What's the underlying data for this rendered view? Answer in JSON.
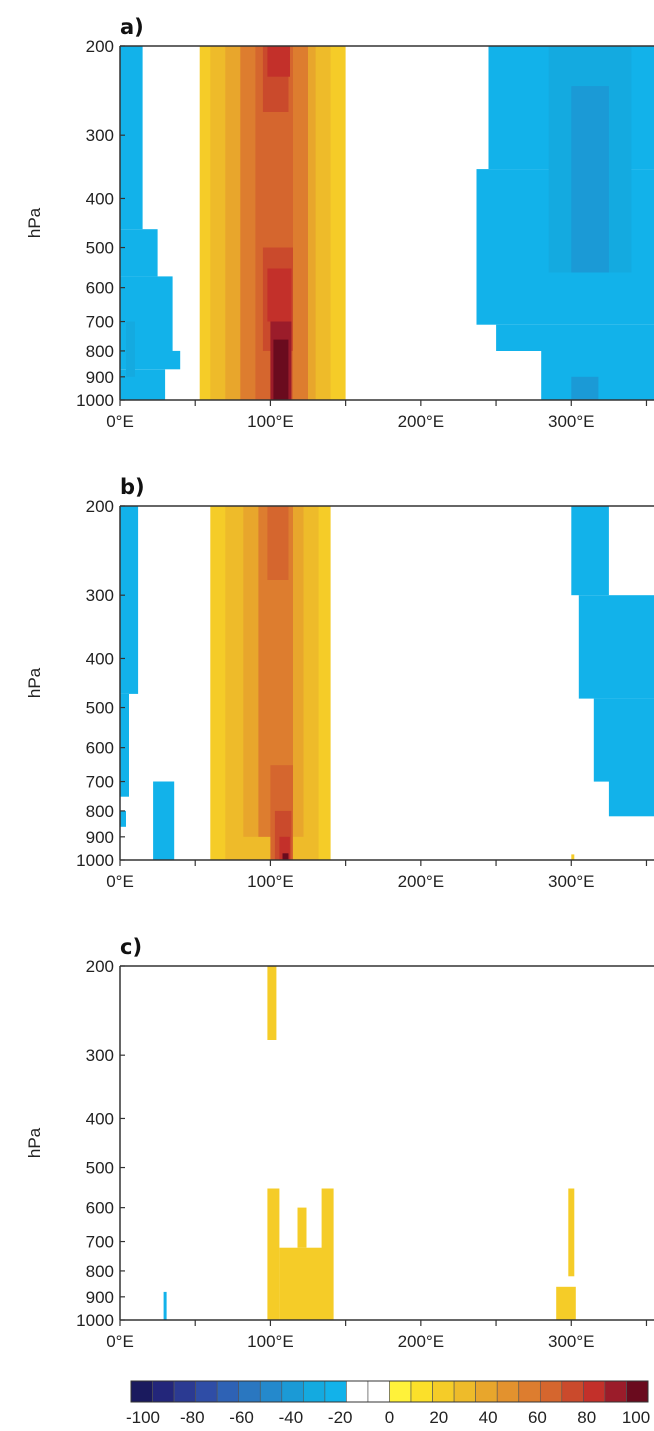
{
  "chart_data": [
    {
      "type": "heatmap",
      "panel_label": "a)",
      "ylabel": "hPa",
      "yticks": [
        "200",
        "300",
        "400",
        "500",
        "600",
        "700",
        "800",
        "900",
        "1000"
      ],
      "xticks": [
        "0°E",
        "100°E",
        "200°E",
        "300°E"
      ],
      "xlim": [
        0,
        355
      ],
      "ylim": [
        1000,
        200
      ],
      "y_scale": "log",
      "regions": [
        {
          "lon": [
            0,
            15
          ],
          "p": [
            200,
            460
          ],
          "value": -20
        },
        {
          "lon": [
            0,
            25
          ],
          "p": [
            460,
            570
          ],
          "value": -20
        },
        {
          "lon": [
            0,
            35
          ],
          "p": [
            570,
            800
          ],
          "value": -20
        },
        {
          "lon": [
            0,
            40
          ],
          "p": [
            800,
            870
          ],
          "value": -20
        },
        {
          "lon": [
            0,
            30
          ],
          "p": [
            870,
            1000
          ],
          "value": -20
        },
        {
          "lon": [
            4,
            10
          ],
          "p": [
            700,
            900
          ],
          "value": -30
        },
        {
          "lon": [
            53,
            150
          ],
          "p": [
            200,
            1000
          ],
          "value": 20
        },
        {
          "lon": [
            60,
            140
          ],
          "p": [
            200,
            1000
          ],
          "value": 30
        },
        {
          "lon": [
            70,
            130
          ],
          "p": [
            200,
            1000
          ],
          "value": 40
        },
        {
          "lon": [
            80,
            125
          ],
          "p": [
            200,
            1000
          ],
          "value": 50
        },
        {
          "lon": [
            90,
            115
          ],
          "p": [
            200,
            1000
          ],
          "value": 60
        },
        {
          "lon": [
            95,
            112
          ],
          "p": [
            200,
            270
          ],
          "value": 70
        },
        {
          "lon": [
            95,
            115
          ],
          "p": [
            500,
            800
          ],
          "value": 70
        },
        {
          "lon": [
            98,
            113
          ],
          "p": [
            200,
            230
          ],
          "value": 80
        },
        {
          "lon": [
            98,
            114
          ],
          "p": [
            550,
            700
          ],
          "value": 80
        },
        {
          "lon": [
            100,
            114
          ],
          "p": [
            700,
            1000
          ],
          "value": 90
        },
        {
          "lon": [
            102,
            112
          ],
          "p": [
            760,
            1000
          ],
          "value": 100
        },
        {
          "lon": [
            245,
            355
          ],
          "p": [
            200,
            350
          ],
          "value": -20
        },
        {
          "lon": [
            237,
            355
          ],
          "p": [
            350,
            710
          ],
          "value": -20
        },
        {
          "lon": [
            250,
            355
          ],
          "p": [
            710,
            800
          ],
          "value": -20
        },
        {
          "lon": [
            280,
            355
          ],
          "p": [
            800,
            1000
          ],
          "value": -20
        },
        {
          "lon": [
            285,
            340
          ],
          "p": [
            200,
            560
          ],
          "value": -30
        },
        {
          "lon": [
            300,
            325
          ],
          "p": [
            240,
            560
          ],
          "value": -40
        },
        {
          "lon": [
            300,
            318
          ],
          "p": [
            900,
            1000
          ],
          "value": -40
        }
      ]
    },
    {
      "type": "heatmap",
      "panel_label": "b)",
      "ylabel": "hPa",
      "yticks": [
        "200",
        "300",
        "400",
        "500",
        "600",
        "700",
        "800",
        "900",
        "1000"
      ],
      "xticks": [
        "0°E",
        "100°E",
        "200°E",
        "300°E"
      ],
      "xlim": [
        0,
        355
      ],
      "ylim": [
        1000,
        200
      ],
      "y_scale": "log",
      "regions": [
        {
          "lon": [
            0,
            12
          ],
          "p": [
            200,
            470
          ],
          "value": -20
        },
        {
          "lon": [
            0,
            6
          ],
          "p": [
            470,
            750
          ],
          "value": -20
        },
        {
          "lon": [
            22,
            36
          ],
          "p": [
            700,
            1000
          ],
          "value": -20
        },
        {
          "lon": [
            0,
            4
          ],
          "p": [
            800,
            860
          ],
          "value": -20
        },
        {
          "lon": [
            60,
            140
          ],
          "p": [
            200,
            1000
          ],
          "value": 20
        },
        {
          "lon": [
            70,
            132
          ],
          "p": [
            200,
            1000
          ],
          "value": 30
        },
        {
          "lon": [
            82,
            122
          ],
          "p": [
            200,
            900
          ],
          "value": 40
        },
        {
          "lon": [
            92,
            115
          ],
          "p": [
            200,
            900
          ],
          "value": 50
        },
        {
          "lon": [
            98,
            112
          ],
          "p": [
            200,
            280
          ],
          "value": 60
        },
        {
          "lon": [
            100,
            115
          ],
          "p": [
            650,
            1000
          ],
          "value": 60
        },
        {
          "lon": [
            103,
            114
          ],
          "p": [
            800,
            1000
          ],
          "value": 70
        },
        {
          "lon": [
            106,
            113
          ],
          "p": [
            900,
            1000
          ],
          "value": 80
        },
        {
          "lon": [
            108,
            112
          ],
          "p": [
            970,
            1000
          ],
          "value": 100
        },
        {
          "lon": [
            300,
            325
          ],
          "p": [
            200,
            300
          ],
          "value": -20
        },
        {
          "lon": [
            305,
            355
          ],
          "p": [
            300,
            480
          ],
          "value": -20
        },
        {
          "lon": [
            315,
            355
          ],
          "p": [
            480,
            700
          ],
          "value": -20
        },
        {
          "lon": [
            325,
            355
          ],
          "p": [
            700,
            820
          ],
          "value": -20
        },
        {
          "lon": [
            300,
            302
          ],
          "p": [
            975,
            1000
          ],
          "value": 20
        }
      ]
    },
    {
      "type": "heatmap",
      "panel_label": "c)",
      "ylabel": "hPa",
      "yticks": [
        "200",
        "300",
        "400",
        "500",
        "600",
        "700",
        "800",
        "900",
        "1000"
      ],
      "xticks": [
        "0°E",
        "100°E",
        "200°E",
        "300°E"
      ],
      "xlim": [
        0,
        355
      ],
      "ylim": [
        1000,
        200
      ],
      "y_scale": "log",
      "regions": [
        {
          "lon": [
            29,
            31
          ],
          "p": [
            880,
            1000
          ],
          "value": -20
        },
        {
          "lon": [
            98,
            104
          ],
          "p": [
            200,
            280
          ],
          "value": 20
        },
        {
          "lon": [
            98,
            106
          ],
          "p": [
            550,
            1000
          ],
          "value": 20
        },
        {
          "lon": [
            106,
            140
          ],
          "p": [
            720,
            1000
          ],
          "value": 20
        },
        {
          "lon": [
            118,
            124
          ],
          "p": [
            600,
            720
          ],
          "value": 20
        },
        {
          "lon": [
            134,
            142
          ],
          "p": [
            550,
            1000
          ],
          "value": 20
        },
        {
          "lon": [
            298,
            302
          ],
          "p": [
            550,
            820
          ],
          "value": 20
        },
        {
          "lon": [
            290,
            303
          ],
          "p": [
            860,
            1000
          ],
          "value": 20
        }
      ]
    }
  ],
  "colorbar": {
    "colors": [
      "#1a1a5e",
      "#23267a",
      "#2b3a92",
      "#2f4da6",
      "#2e62b5",
      "#2a77c0",
      "#2489cc",
      "#1b9ad6",
      "#14aae0",
      "#12b2ea",
      "#ffffff",
      "#ffffff",
      "#fff23a",
      "#fbe02a",
      "#f5cc28",
      "#eebb2a",
      "#e8a62c",
      "#e3922e",
      "#dd7d2f",
      "#d5662e",
      "#ca4a2c",
      "#c3302a",
      "#9b1c2a",
      "#6a0b1e"
    ],
    "tick_labels": [
      "-100",
      "-80",
      "-60",
      "-40",
      "-20",
      "0",
      "20",
      "40",
      "60",
      "80",
      "100"
    ]
  }
}
